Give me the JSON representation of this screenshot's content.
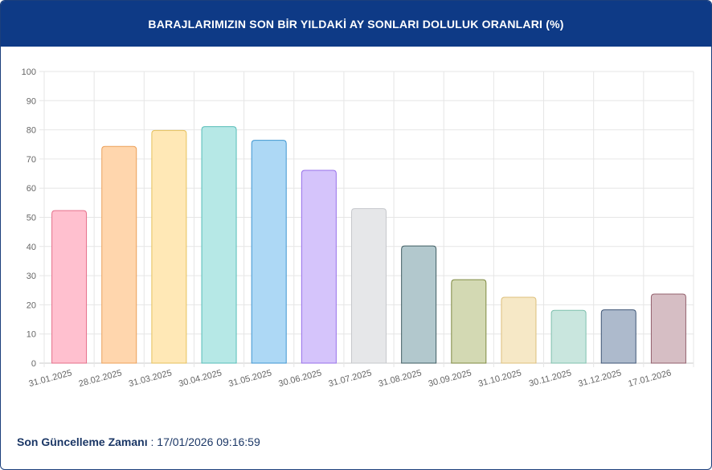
{
  "header": {
    "title": "BARAJLARIMIZIN SON BİR YILDAKİ AY SONLARI DOLULUK ORANLARI (%)"
  },
  "footer": {
    "label": "Son Güncelleme Zamanı",
    "separator": " : ",
    "value": "17/01/2026 09:16:59"
  },
  "chart_data": {
    "type": "bar",
    "title": "BARAJLARIMIZIN SON BİR YILDAKİ AY SONLARI DOLULUK ORANLARI (%)",
    "xlabel": "",
    "ylabel": "",
    "ylim": [
      0,
      100
    ],
    "yticks": [
      0,
      10,
      20,
      30,
      40,
      50,
      60,
      70,
      80,
      90,
      100
    ],
    "grid": true,
    "legend": "none",
    "categories": [
      "31.01.2025",
      "28.02.2025",
      "31.03.2025",
      "30.04.2025",
      "31.05.2025",
      "30.06.2025",
      "31.07.2025",
      "31.08.2025",
      "30.09.2025",
      "31.10.2025",
      "30.11.2025",
      "31.12.2025",
      "17.01.2026"
    ],
    "values": [
      52.3,
      74.3,
      79.8,
      81.1,
      76.4,
      66.1,
      53.0,
      40.2,
      28.6,
      22.6,
      18.1,
      18.3,
      23.7
    ],
    "colors": [
      {
        "fill": "#ffc0cf",
        "stroke": "#e56f8a"
      },
      {
        "fill": "#ffd6ad",
        "stroke": "#eca05a"
      },
      {
        "fill": "#ffe8b6",
        "stroke": "#e6c15c"
      },
      {
        "fill": "#b6e8e6",
        "stroke": "#57bdb8"
      },
      {
        "fill": "#add8f5",
        "stroke": "#3f96d1"
      },
      {
        "fill": "#d5c4fb",
        "stroke": "#9770ea"
      },
      {
        "fill": "#e6e7e9",
        "stroke": "#c6c8cc"
      },
      {
        "fill": "#b2c8cd",
        "stroke": "#3f5c62"
      },
      {
        "fill": "#d3d9b3",
        "stroke": "#7f8a42"
      },
      {
        "fill": "#f6e8c6",
        "stroke": "#ddbf7c"
      },
      {
        "fill": "#c9e6de",
        "stroke": "#7fc0ae"
      },
      {
        "fill": "#adbacc",
        "stroke": "#3f5676"
      },
      {
        "fill": "#d6bec4",
        "stroke": "#93606d"
      }
    ]
  }
}
